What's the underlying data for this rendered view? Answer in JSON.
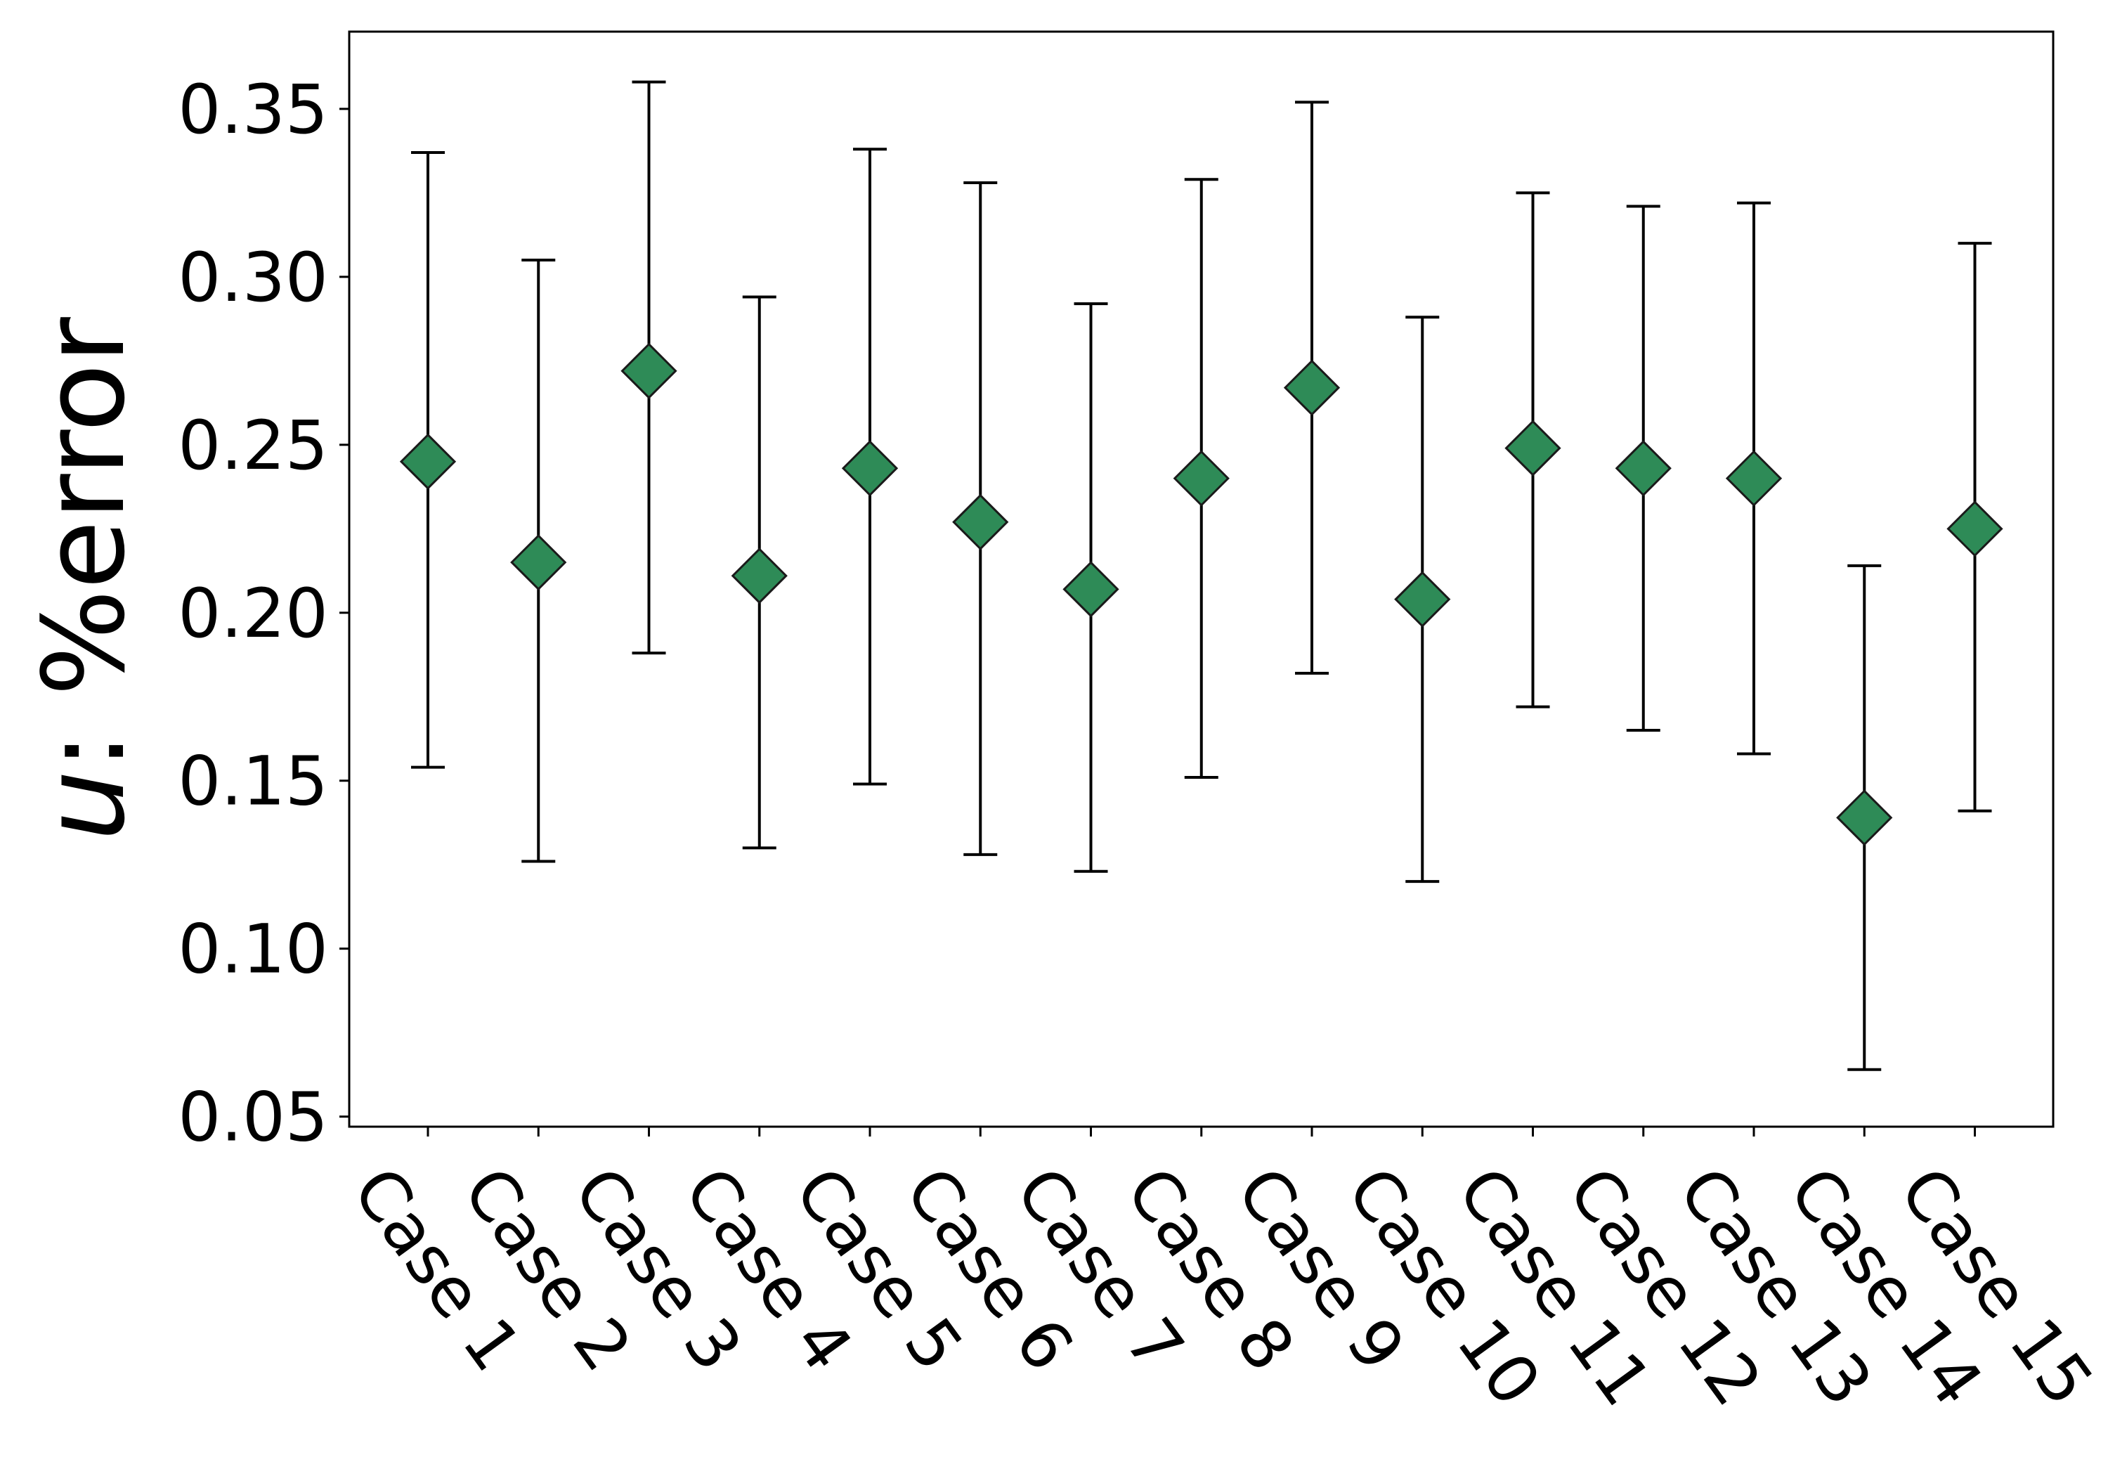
{
  "chart_data": {
    "type": "scatter",
    "ylabel_prefix": "u",
    "ylabel_suffix": ": %error",
    "xlabel": "",
    "title": "",
    "ylim": [
      0.047,
      0.373
    ],
    "yticks": [
      "0.05",
      "0.10",
      "0.15",
      "0.20",
      "0.25",
      "0.30",
      "0.35"
    ],
    "grid": false,
    "marker": "diamond",
    "marker_color": "#2e8b57",
    "categories": [
      "Case 1",
      "Case 2",
      "Case 3",
      "Case 4",
      "Case 5",
      "Case 6",
      "Case 7",
      "Case 8",
      "Case 9",
      "Case 10",
      "Case 11",
      "Case 12",
      "Case 13",
      "Case 14",
      "Case 15"
    ],
    "values": [
      0.245,
      0.215,
      0.272,
      0.211,
      0.243,
      0.227,
      0.207,
      0.24,
      0.267,
      0.204,
      0.249,
      0.243,
      0.24,
      0.139,
      0.225
    ],
    "lower": [
      0.154,
      0.126,
      0.188,
      0.13,
      0.149,
      0.128,
      0.123,
      0.151,
      0.182,
      0.12,
      0.172,
      0.165,
      0.158,
      0.064,
      0.141
    ],
    "upper": [
      0.337,
      0.305,
      0.358,
      0.294,
      0.338,
      0.328,
      0.292,
      0.329,
      0.352,
      0.288,
      0.325,
      0.321,
      0.322,
      0.214,
      0.31
    ]
  }
}
